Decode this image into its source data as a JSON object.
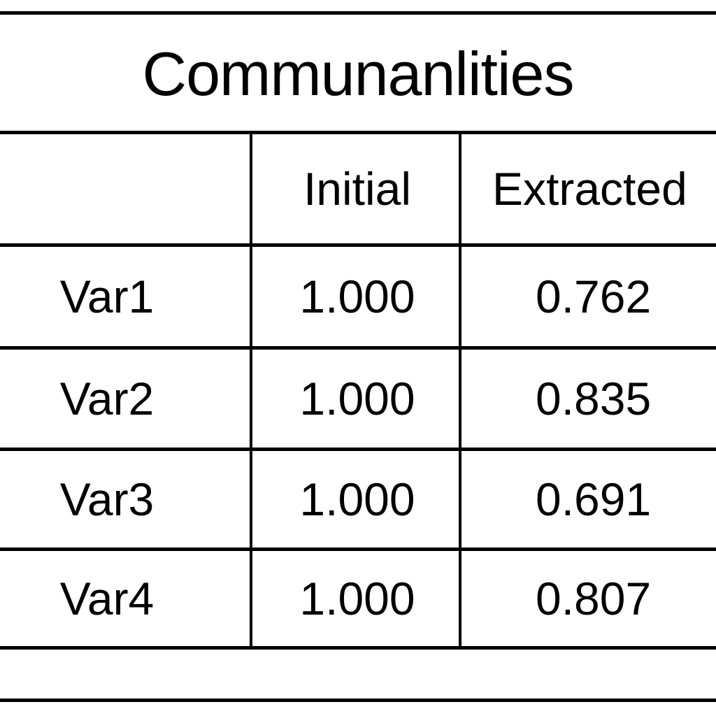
{
  "table": {
    "title": "Communanlities",
    "columns": [
      "",
      "Initial",
      "Extracted"
    ],
    "rows": [
      {
        "variable": "Var1",
        "initial": "1.000",
        "extracted": "0.762"
      },
      {
        "variable": "Var2",
        "initial": "1.000",
        "extracted": "0.835"
      },
      {
        "variable": "Var3",
        "initial": "1.000",
        "extracted": "0.691"
      },
      {
        "variable": "Var4",
        "initial": "1.000",
        "extracted": "0.807"
      }
    ]
  }
}
